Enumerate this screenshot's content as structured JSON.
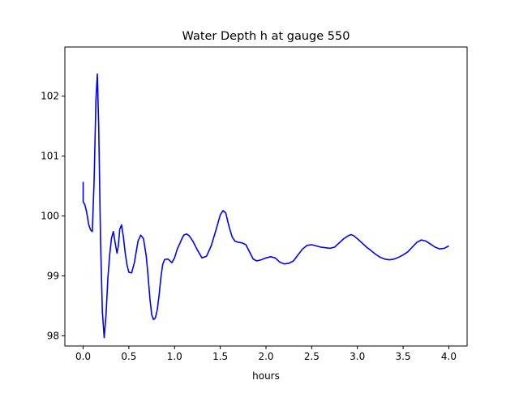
{
  "chart_data": {
    "type": "line",
    "title": "Water Depth h at gauge 550",
    "xlabel": "hours",
    "ylabel": "",
    "xlim": [
      -0.2,
      4.2
    ],
    "ylim": [
      97.83,
      102.82
    ],
    "xticks": [
      0.0,
      0.5,
      1.0,
      1.5,
      2.0,
      2.5,
      3.0,
      3.5,
      4.0
    ],
    "xtick_labels": [
      "0.0",
      "0.5",
      "1.0",
      "1.5",
      "2.0",
      "2.5",
      "3.0",
      "3.5",
      "4.0"
    ],
    "yticks": [
      98,
      99,
      100,
      101,
      102
    ],
    "ytick_labels": [
      "98",
      "99",
      "100",
      "101",
      "102"
    ],
    "grid": false,
    "series": [
      {
        "color": "#0000ff",
        "x": [
          0.0,
          0.0,
          0.02,
          0.04,
          0.06,
          0.08,
          0.1,
          0.12,
          0.14,
          0.155,
          0.17,
          0.19,
          0.21,
          0.23,
          0.25,
          0.27,
          0.29,
          0.31,
          0.33,
          0.35,
          0.37,
          0.385,
          0.4,
          0.42,
          0.44,
          0.46,
          0.48,
          0.5,
          0.53,
          0.56,
          0.6,
          0.63,
          0.66,
          0.69,
          0.71,
          0.73,
          0.75,
          0.77,
          0.79,
          0.81,
          0.83,
          0.85,
          0.87,
          0.89,
          0.91,
          0.93,
          0.95,
          0.97,
          1.0,
          1.03,
          1.06,
          1.08,
          1.1,
          1.13,
          1.16,
          1.2,
          1.25,
          1.3,
          1.35,
          1.4,
          1.45,
          1.5,
          1.53,
          1.56,
          1.58,
          1.6,
          1.63,
          1.66,
          1.7,
          1.74,
          1.78,
          1.82,
          1.86,
          1.9,
          1.95,
          2.0,
          2.05,
          2.1,
          2.15,
          2.2,
          2.25,
          2.3,
          2.35,
          2.4,
          2.45,
          2.5,
          2.55,
          2.6,
          2.65,
          2.7,
          2.75,
          2.8,
          2.85,
          2.9,
          2.93,
          2.96,
          3.0,
          3.05,
          3.1,
          3.15,
          3.2,
          3.25,
          3.3,
          3.35,
          3.4,
          3.45,
          3.5,
          3.55,
          3.6,
          3.65,
          3.7,
          3.75,
          3.8,
          3.85,
          3.9,
          3.95,
          4.0
        ],
        "y": [
          100.57,
          100.24,
          100.18,
          100.05,
          99.86,
          99.77,
          99.74,
          100.6,
          101.95,
          102.37,
          101.5,
          99.6,
          98.4,
          97.97,
          98.35,
          98.95,
          99.35,
          99.63,
          99.74,
          99.55,
          99.38,
          99.5,
          99.78,
          99.85,
          99.65,
          99.38,
          99.18,
          99.06,
          99.05,
          99.22,
          99.58,
          99.68,
          99.62,
          99.33,
          99.0,
          98.62,
          98.35,
          98.27,
          98.3,
          98.43,
          98.67,
          98.97,
          99.19,
          99.27,
          99.28,
          99.28,
          99.25,
          99.22,
          99.3,
          99.45,
          99.55,
          99.62,
          99.68,
          99.7,
          99.67,
          99.58,
          99.43,
          99.3,
          99.33,
          99.5,
          99.75,
          100.02,
          100.09,
          100.05,
          99.92,
          99.8,
          99.65,
          99.58,
          99.56,
          99.55,
          99.52,
          99.4,
          99.28,
          99.25,
          99.27,
          99.3,
          99.32,
          99.3,
          99.23,
          99.2,
          99.21,
          99.25,
          99.35,
          99.45,
          99.51,
          99.52,
          99.5,
          99.48,
          99.47,
          99.46,
          99.48,
          99.55,
          99.62,
          99.67,
          99.69,
          99.67,
          99.62,
          99.55,
          99.48,
          99.42,
          99.36,
          99.31,
          99.28,
          99.27,
          99.28,
          99.31,
          99.35,
          99.4,
          99.48,
          99.56,
          99.6,
          99.58,
          99.53,
          99.48,
          99.45,
          99.46,
          99.5
        ]
      }
    ]
  }
}
